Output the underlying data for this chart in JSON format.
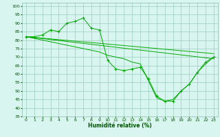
{
  "xlabel": "Humidité relative (%)",
  "line_color": "#00aa00",
  "bg_color": "#d8f5f0",
  "grid_color": "#99ccbb",
  "xlim": [
    -0.5,
    23.5
  ],
  "ylim": [
    35,
    102
  ],
  "xticks": [
    0,
    1,
    2,
    3,
    4,
    5,
    6,
    7,
    8,
    9,
    10,
    11,
    12,
    13,
    14,
    15,
    16,
    17,
    18,
    19,
    20,
    21,
    22,
    23
  ],
  "yticks": [
    35,
    40,
    45,
    50,
    55,
    60,
    65,
    70,
    75,
    80,
    85,
    90,
    95,
    100
  ],
  "series_marked": {
    "x": [
      0,
      1,
      2,
      3,
      4,
      5,
      6,
      7,
      8,
      9,
      10,
      11,
      12,
      13,
      14,
      15,
      16,
      17,
      18,
      19,
      20,
      21,
      22,
      23
    ],
    "y": [
      82,
      82,
      83,
      86,
      85,
      90,
      91,
      93,
      87,
      86,
      68,
      63,
      62,
      63,
      64,
      57,
      47,
      44,
      44,
      50,
      54,
      61,
      67,
      70
    ]
  },
  "series_lines": [
    {
      "x": [
        0,
        23
      ],
      "y": [
        82,
        72
      ]
    },
    {
      "x": [
        0,
        23
      ],
      "y": [
        82,
        69
      ]
    },
    {
      "x": [
        0,
        1,
        2,
        3,
        4,
        5,
        6,
        7,
        8,
        9,
        10,
        11,
        12,
        13,
        14,
        15,
        16,
        17,
        18,
        19,
        20,
        21,
        22,
        23
      ],
      "y": [
        82,
        81,
        80,
        79,
        78,
        77,
        76,
        75,
        74,
        73,
        71,
        70,
        69,
        67,
        66,
        56,
        46,
        44,
        45,
        50,
        54,
        61,
        66,
        70
      ]
    }
  ]
}
